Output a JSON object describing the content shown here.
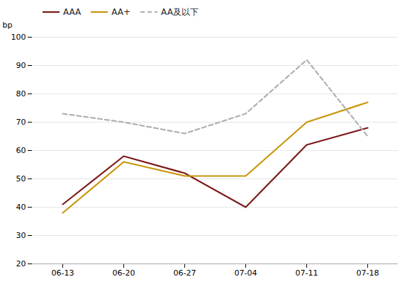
{
  "chart_data": {
    "type": "line",
    "categories": [
      "06-13",
      "06-20",
      "06-27",
      "07-04",
      "07-11",
      "07-18"
    ],
    "series": [
      {
        "name": "AAA",
        "color": "#7B1A1A",
        "line_style": "solid",
        "values": [
          41,
          58,
          52,
          40,
          62,
          68
        ]
      },
      {
        "name": "AA+",
        "color": "#C8960C",
        "line_style": "solid",
        "values": [
          38,
          56,
          51,
          51,
          70,
          77
        ]
      },
      {
        "name": "AA及以下",
        "color": "#B0B0B0",
        "line_style": "dashed",
        "values": [
          73,
          70,
          66,
          73,
          92,
          65
        ]
      }
    ],
    "ylabel": "bp",
    "ylim": [
      20,
      100
    ],
    "yticks": [
      20,
      30,
      40,
      50,
      60,
      70,
      80,
      90,
      100
    ],
    "grid": true,
    "legend": "top"
  }
}
